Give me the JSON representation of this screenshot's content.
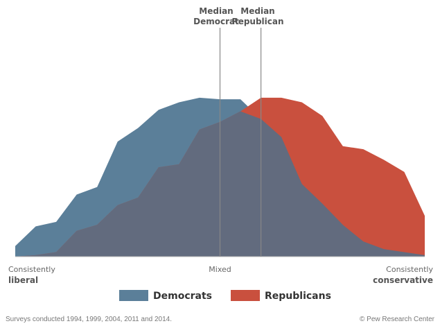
{
  "chart_data": {
    "type": "area",
    "x": [
      0,
      1,
      2,
      3,
      4,
      5,
      6,
      7,
      8,
      9,
      10,
      11,
      12,
      13,
      14,
      15,
      16,
      17,
      18,
      19,
      20
    ],
    "series": [
      {
        "name": "Democrats",
        "color": "#5b7f99",
        "values": [
          0.07,
          0.2,
          0.23,
          0.41,
          0.46,
          0.76,
          0.85,
          0.97,
          1.02,
          1.05,
          1.04,
          1.04,
          0.91,
          0.79,
          0.48,
          0.35,
          0.21,
          0.1,
          0.05,
          0.03,
          0.01
        ]
      },
      {
        "name": "Republicans",
        "color": "#c9503e",
        "values": [
          0.0,
          0.01,
          0.03,
          0.17,
          0.21,
          0.34,
          0.39,
          0.59,
          0.61,
          0.84,
          0.89,
          0.96,
          1.05,
          1.05,
          1.02,
          0.93,
          0.73,
          0.71,
          0.64,
          0.56,
          0.27
        ]
      }
    ],
    "overlap_color": "#626b7e",
    "medians": [
      {
        "label_line1": "Median",
        "label_line2": "Democrat",
        "x": 10.0
      },
      {
        "label_line1": "Median",
        "label_line2": "Republican",
        "x": 12.0
      }
    ],
    "x_tick_labels": [
      {
        "x": 0,
        "line1": "Consistently",
        "line2": "liberal",
        "align": "start"
      },
      {
        "x": 10,
        "line1": "Mixed",
        "line2": "",
        "align": "middle"
      },
      {
        "x": 20,
        "line1": "Consistently",
        "line2": "conservative",
        "align": "end"
      }
    ],
    "ylim": [
      0,
      1.1
    ],
    "grid": false,
    "legend_position": "bottom-center",
    "title": "",
    "xlabel": "",
    "ylabel": ""
  },
  "legend": {
    "democrats_label": "Democrats",
    "republicans_label": "Republicans"
  },
  "footer": {
    "note": "Surveys conducted 1994, 1999, 2004, 2011 and 2014.",
    "source": "© Pew Research Center"
  }
}
